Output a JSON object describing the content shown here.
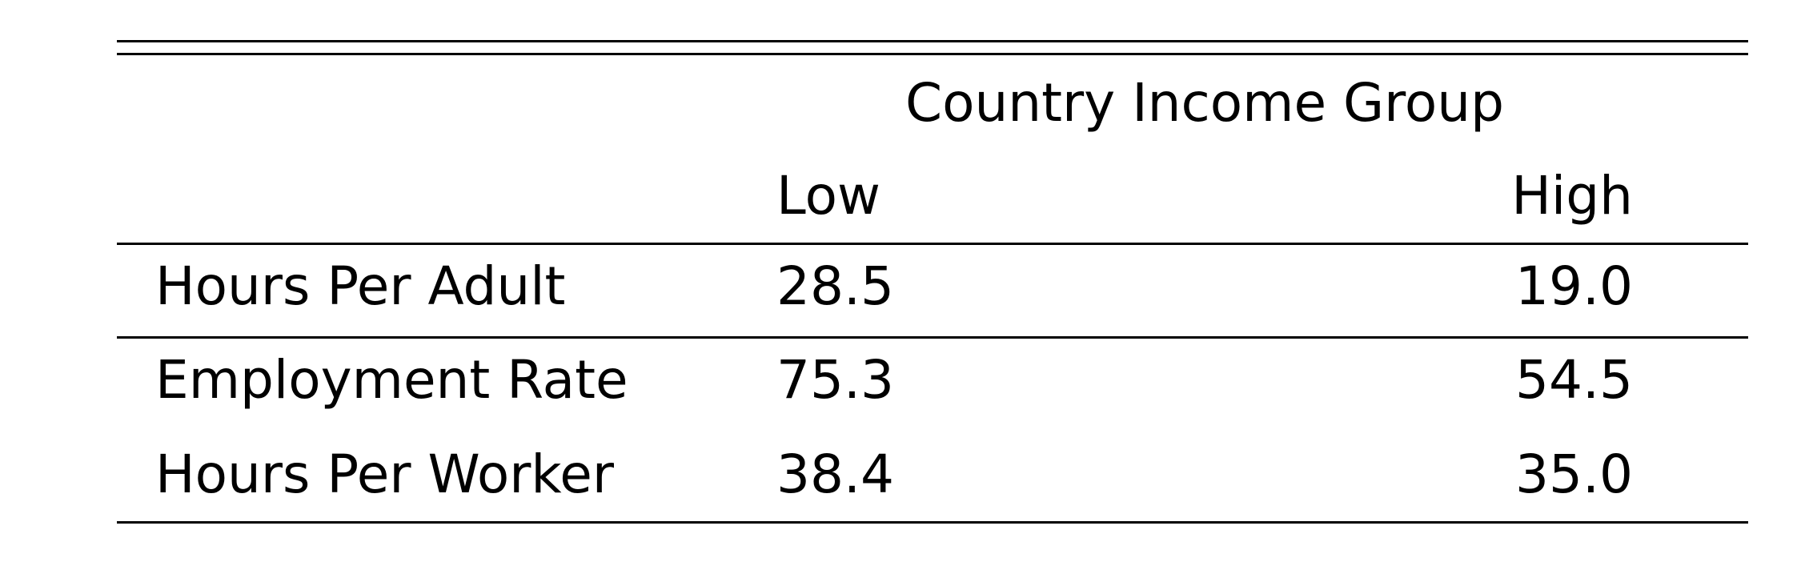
{
  "table": {
    "header_group": "Country Income Group",
    "columns": [
      "Low",
      "High"
    ],
    "rows": [
      {
        "label": "Hours Per Adult",
        "low": "28.5",
        "high": "19.0"
      },
      {
        "label": "Employment Rate",
        "low": "75.3",
        "high": "54.5"
      },
      {
        "label": "Hours Per Worker",
        "low": "38.4",
        "high": "35.0"
      }
    ]
  }
}
